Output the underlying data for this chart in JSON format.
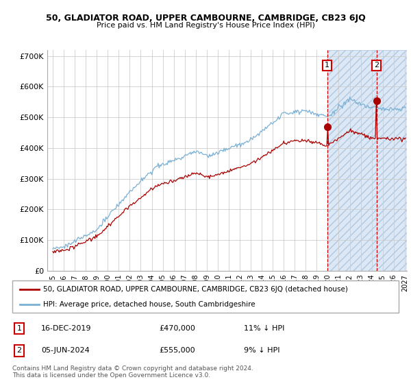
{
  "title1": "50, GLADIATOR ROAD, UPPER CAMBOURNE, CAMBRIDGE, CB23 6JQ",
  "title2": "Price paid vs. HM Land Registry's House Price Index (HPI)",
  "ylim": [
    0,
    720000
  ],
  "yticks": [
    0,
    100000,
    200000,
    300000,
    400000,
    500000,
    600000,
    700000
  ],
  "ytick_labels": [
    "£0",
    "£100K",
    "£200K",
    "£300K",
    "£400K",
    "£500K",
    "£600K",
    "£700K"
  ],
  "legend_line1": "50, GLADIATOR ROAD, UPPER CAMBOURNE, CAMBRIDGE, CB23 6JQ (detached house)",
  "legend_line2": "HPI: Average price, detached house, South Cambridgeshire",
  "annotation1_date": "16-DEC-2019",
  "annotation1_price": "£470,000",
  "annotation1_hpi": "11% ↓ HPI",
  "annotation2_date": "05-JUN-2024",
  "annotation2_price": "£555,000",
  "annotation2_hpi": "9% ↓ HPI",
  "footer1": "Contains HM Land Registry data © Crown copyright and database right 2024.",
  "footer2": "This data is licensed under the Open Government Licence v3.0.",
  "hpi_color": "#7ab0d4",
  "price_color": "#aa0000",
  "sale1_x_year": 2019.96,
  "sale1_y": 470000,
  "sale2_x_year": 2024.43,
  "sale2_y": 555000,
  "xlim_left": 1994.5,
  "xlim_right": 2027.2,
  "hatch_start": 2019.96,
  "hatch_end": 2027.2,
  "hatch_bg_color": "#dce8f5",
  "hatch_color": "#b0c8e0"
}
